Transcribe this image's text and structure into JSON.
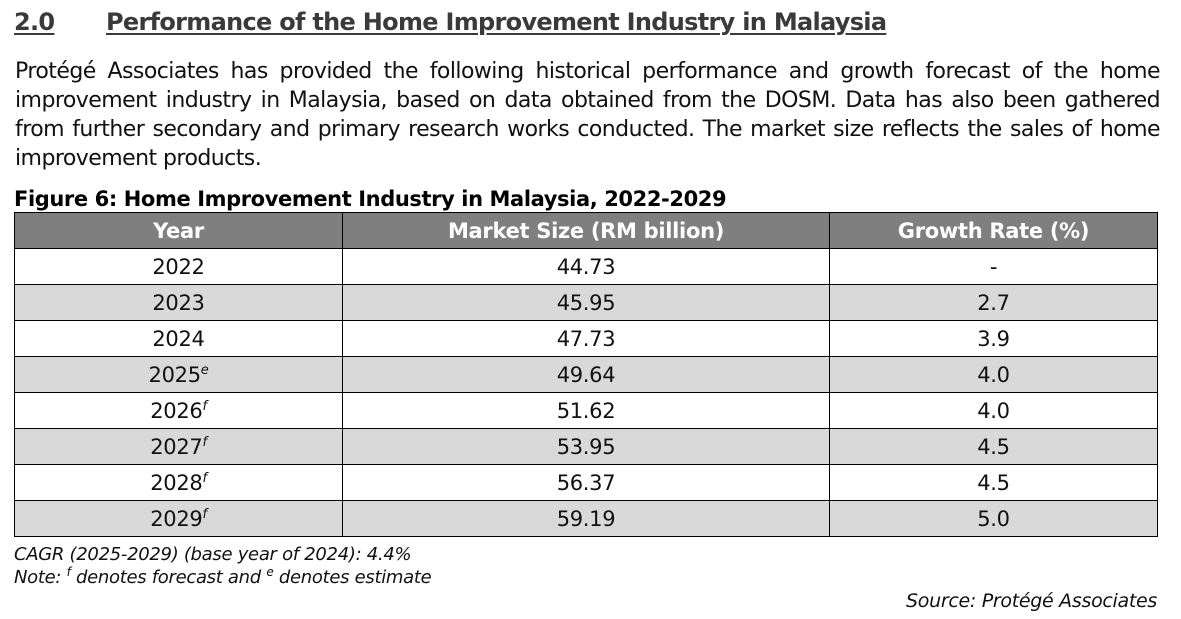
{
  "section": {
    "number": "2.0",
    "title": "Performance of the Home Improvement Industry in Malaysia"
  },
  "paragraph": "Protégé Associates has provided the following historical performance and growth forecast of the home improvement industry in Malaysia, based on data obtained from the DOSM. Data has also been gathered from further secondary and primary research works conducted. The market size reflects the sales of home improvement products.",
  "figure": {
    "caption": "Figure 6: Home Improvement Industry in Malaysia, 2022-2029",
    "columns": [
      "Year",
      "Market Size (RM billion)",
      "Growth Rate (%)"
    ],
    "rows": [
      {
        "year": "2022",
        "mark": "",
        "market_size": "44.73",
        "growth": "-"
      },
      {
        "year": "2023",
        "mark": "",
        "market_size": "45.95",
        "growth": "2.7"
      },
      {
        "year": "2024",
        "mark": "",
        "market_size": "47.73",
        "growth": "3.9"
      },
      {
        "year": "2025",
        "mark": "e",
        "market_size": "49.64",
        "growth": "4.0"
      },
      {
        "year": "2026",
        "mark": "f",
        "market_size": "51.62",
        "growth": "4.0"
      },
      {
        "year": "2027",
        "mark": "f",
        "market_size": "53.95",
        "growth": "4.5"
      },
      {
        "year": "2028",
        "mark": "f",
        "market_size": "56.37",
        "growth": "4.5"
      },
      {
        "year": "2029",
        "mark": "f",
        "market_size": "59.19",
        "growth": "5.0"
      }
    ]
  },
  "notes": {
    "cagr": "CAGR (2025-2029) (base year of 2024): 4.4%",
    "note_prefix": "Note: ",
    "note_f_mark": "f",
    "note_f_text": " denotes forecast and ",
    "note_e_mark": "e",
    "note_e_text": " denotes estimate"
  },
  "source": "Source: Protégé Associates",
  "colors": {
    "header_bg": "#7f7f7f",
    "header_text": "#ffffff",
    "shaded_row": "#d9d9d9"
  }
}
